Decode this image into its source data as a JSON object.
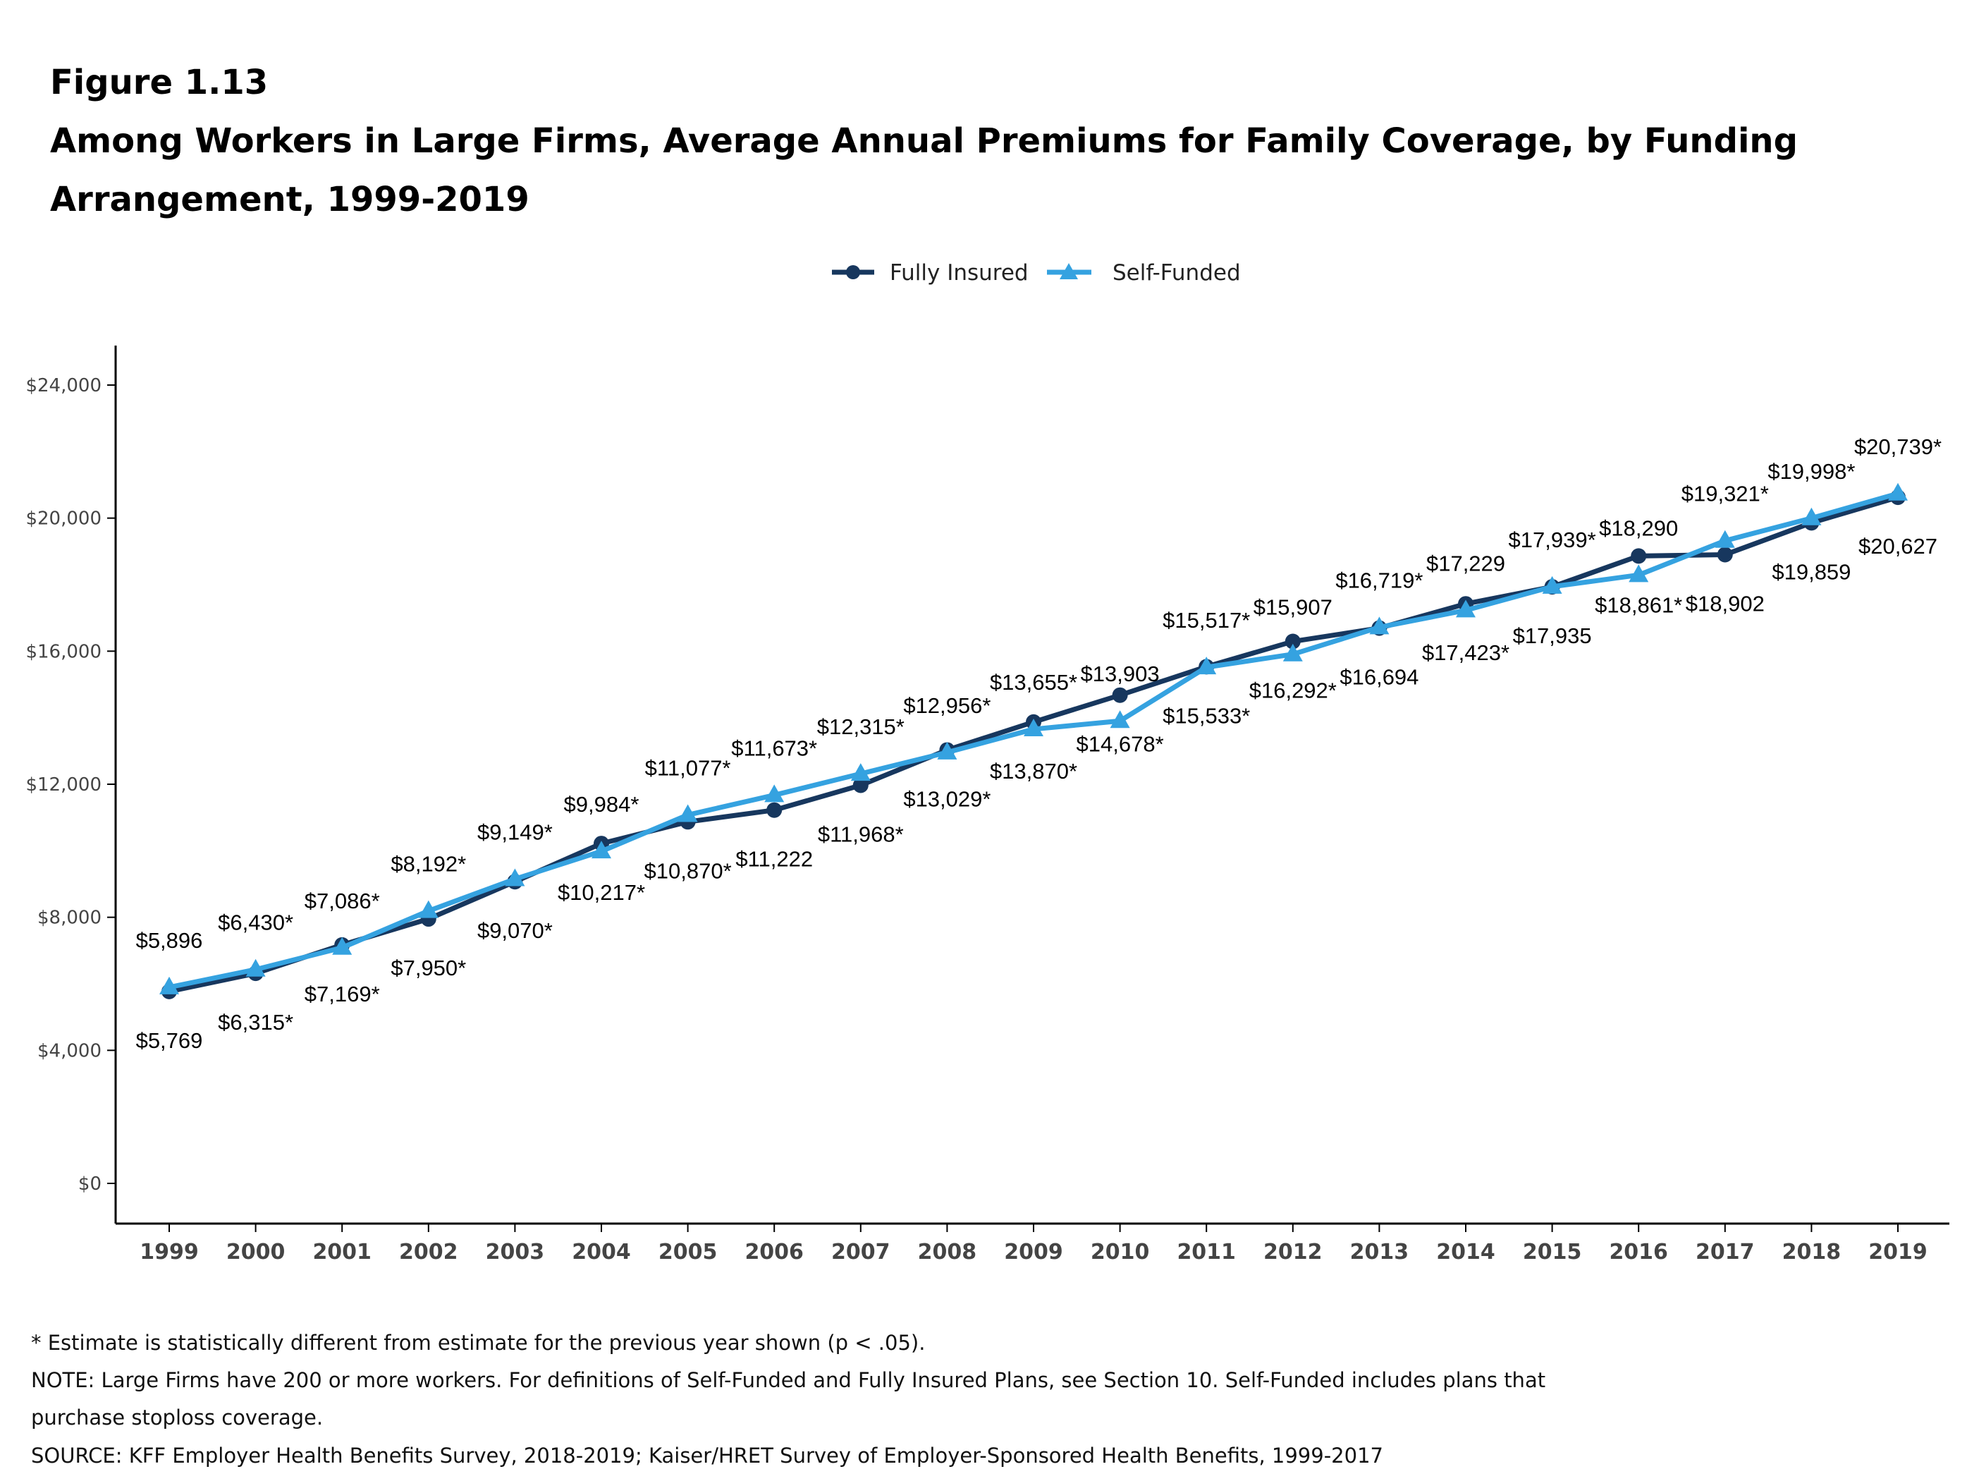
{
  "figure_label": "Figure 1.13",
  "title_line1": "Among Workers in Large Firms, Average Annual Premiums for Family Coverage, by Funding",
  "title_line2": "Arrangement, 1999-2019",
  "footnotes": [
    "* Estimate is statistically different from estimate for the previous year shown (p < .05).",
    "NOTE: Large Firms have 200 or more workers.  For definitions of Self-Funded and Fully Insured Plans, see Section 10. Self-Funded includes plans that",
    "purchase stoploss coverage.",
    "SOURCE: KFF Employer Health Benefits Survey, 2018-2019; Kaiser/HRET Survey of Employer-Sponsored Health Benefits, 1999-2017"
  ],
  "chart_data": {
    "type": "line",
    "title": "Among Workers in Large Firms, Average Annual Premiums for Family Coverage, by Funding Arrangement, 1999-2019",
    "xlabel": "",
    "ylabel": "",
    "ylim": [
      0,
      24000
    ],
    "yticks": [
      0,
      4000,
      8000,
      12000,
      16000,
      20000,
      24000
    ],
    "ytick_labels": [
      "$0",
      "$4,000",
      "$8,000",
      "$12,000",
      "$16,000",
      "$20,000",
      "$24,000"
    ],
    "grid": false,
    "legend_position": "top",
    "categories": [
      "1999",
      "2000",
      "2001",
      "2002",
      "2003",
      "2004",
      "2005",
      "2006",
      "2007",
      "2008",
      "2009",
      "2010",
      "2011",
      "2012",
      "2013",
      "2014",
      "2015",
      "2016",
      "2017",
      "2018",
      "2019"
    ],
    "series": [
      {
        "name": "Fully Insured",
        "color": "#17375e",
        "marker": "circle",
        "values": [
          5769,
          6315,
          7169,
          7950,
          9070,
          10217,
          10870,
          11222,
          11968,
          13029,
          13870,
          14678,
          15533,
          16292,
          16694,
          17423,
          17935,
          18861,
          18902,
          19859,
          20627
        ],
        "labels": [
          "$5,769",
          "$6,315*",
          "$7,169*",
          "$7,950*",
          "$9,070*",
          "$10,217*",
          "$10,870*",
          "$11,222",
          "$11,968*",
          "$13,029*",
          "$13,870*",
          "$14,678*",
          "$15,533*",
          "$16,292*",
          "$16,694",
          "$17,423*",
          "$17,935",
          "$18,861*",
          "$18,902",
          "$19,859",
          "$20,627"
        ]
      },
      {
        "name": "Self-Funded",
        "color": "#35a2e0",
        "marker": "triangle",
        "values": [
          5896,
          6430,
          7086,
          8192,
          9149,
          9984,
          11077,
          11673,
          12315,
          12956,
          13655,
          13903,
          15517,
          15907,
          16719,
          17229,
          17939,
          18290,
          19321,
          19998,
          20739
        ],
        "labels": [
          "$5,896",
          "$6,430*",
          "$7,086*",
          "$8,192*",
          "$9,149*",
          "$9,984*",
          "$11,077*",
          "$11,673*",
          "$12,315*",
          "$12,956*",
          "$13,655*",
          "$13,903",
          "$15,517*",
          "$15,907",
          "$16,719*",
          "$17,229",
          "$17,939*",
          "$18,290",
          "$19,321*",
          "$19,998*",
          "$20,739*"
        ]
      }
    ]
  }
}
